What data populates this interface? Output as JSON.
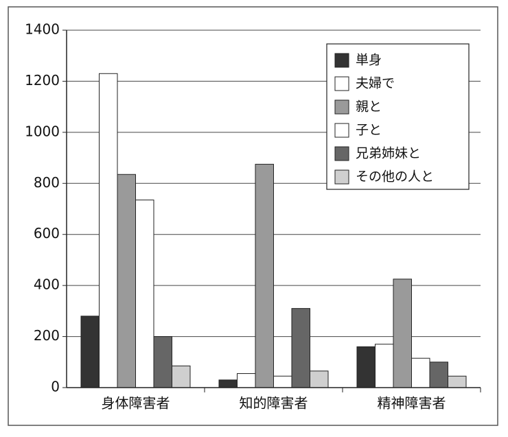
{
  "chart_data": {
    "type": "bar",
    "categories": [
      "身体障害者",
      "知的障害者",
      "精神障害者"
    ],
    "series": [
      {
        "name": "単身",
        "color": "#333333",
        "values": [
          280,
          30,
          160
        ]
      },
      {
        "name": "夫婦で",
        "color": "#ffffff",
        "values": [
          1230,
          55,
          170
        ]
      },
      {
        "name": "親と",
        "color": "#9a9a9a",
        "values": [
          835,
          875,
          425
        ]
      },
      {
        "name": "子と",
        "color": "#ffffff",
        "values": [
          735,
          45,
          115
        ]
      },
      {
        "name": "兄弟姉妹と",
        "color": "#666666",
        "values": [
          200,
          310,
          100
        ]
      },
      {
        "name": "その他の人と",
        "color": "#cfcfcf",
        "values": [
          85,
          65,
          45
        ]
      }
    ],
    "ylim": [
      0,
      1400
    ],
    "yticks": [
      0,
      200,
      400,
      600,
      800,
      1000,
      1200,
      1400
    ],
    "grid": true,
    "legend": "upper right"
  }
}
